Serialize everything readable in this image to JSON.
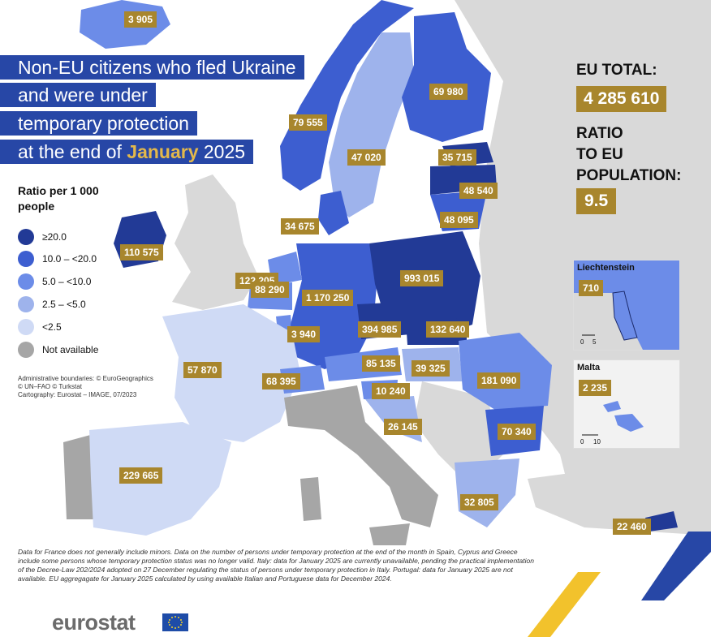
{
  "title": {
    "lines": [
      "Non-EU citizens who fled Ukraine",
      "and were under",
      "temporary protection",
      "at the end of"
    ],
    "month": "January",
    "year": "2025"
  },
  "totals": {
    "eu_total_label": "EU TOTAL:",
    "eu_total_value": "4 285 610",
    "ratio_label": "RATIO\nTO EU\nPOPULATION:",
    "ratio_value": "9.5"
  },
  "legend": {
    "title": "Ratio per 1 000 people",
    "items": [
      {
        "label": "≥20.0",
        "color": "#223a96"
      },
      {
        "label": "10.0 – <20.0",
        "color": "#3d5ed0"
      },
      {
        "label": "5.0 – <10.0",
        "color": "#6c8ce8"
      },
      {
        "label": "2.5 – <5.0",
        "color": "#9eb3ec"
      },
      {
        "label": "<2.5",
        "color": "#cfdaf5"
      },
      {
        "label": "Not available",
        "color": "#a6a6a6"
      }
    ]
  },
  "credits": [
    "Administrative boundaries: © EuroGeographics",
    "© UN–FAO © Turkstat",
    "Cartography: Eurostat – IMAGE, 07/2023"
  ],
  "values": {
    "iceland": "3 905",
    "finland": "69 980",
    "norway": "79 555",
    "sweden": "47 020",
    "estonia": "35 715",
    "latvia": "48 540",
    "lithuania": "48 095",
    "denmark": "34 675",
    "ireland": "110 575",
    "netherlands": "122 205",
    "belgium": "88 290",
    "luxembourg": "3 940",
    "germany": "1 170 250",
    "poland": "993 015",
    "czechia": "394 985",
    "slovakia": "132 640",
    "france": "57 870",
    "switzerland": "68 395",
    "austria": "85 135",
    "hungary": "39 325",
    "slovenia": "10 240",
    "croatia": "26 145",
    "romania": "181 090",
    "bulgaria": "70 340",
    "greece": "32 805",
    "cyprus": "22 460",
    "spain": "229 665"
  },
  "insets": {
    "liechtenstein": {
      "title": "Liechtenstein",
      "value": "710",
      "scale_labels": [
        "0",
        "5"
      ]
    },
    "malta": {
      "title": "Malta",
      "value": "2 235",
      "scale_labels": [
        "0",
        "10"
      ]
    }
  },
  "notes": "Data for France does not generally include minors. Data on the number of persons under temporary protection at the end of the month in Spain, Cyprus and Greece include some persons whose temporary protection status was no longer valid. Italy: data for January 2025 are currently unavailable, pending the practical implementation of the Decree-Law 202/2024 adopted on 27 December regulating the status of persons under temporary protection in Italy. Portugal: data for January 2025 are not available. EU aggregagate for January 2025 calculated by using available Italian and Portuguese data for December 2024.",
  "logo": "eurostat"
}
